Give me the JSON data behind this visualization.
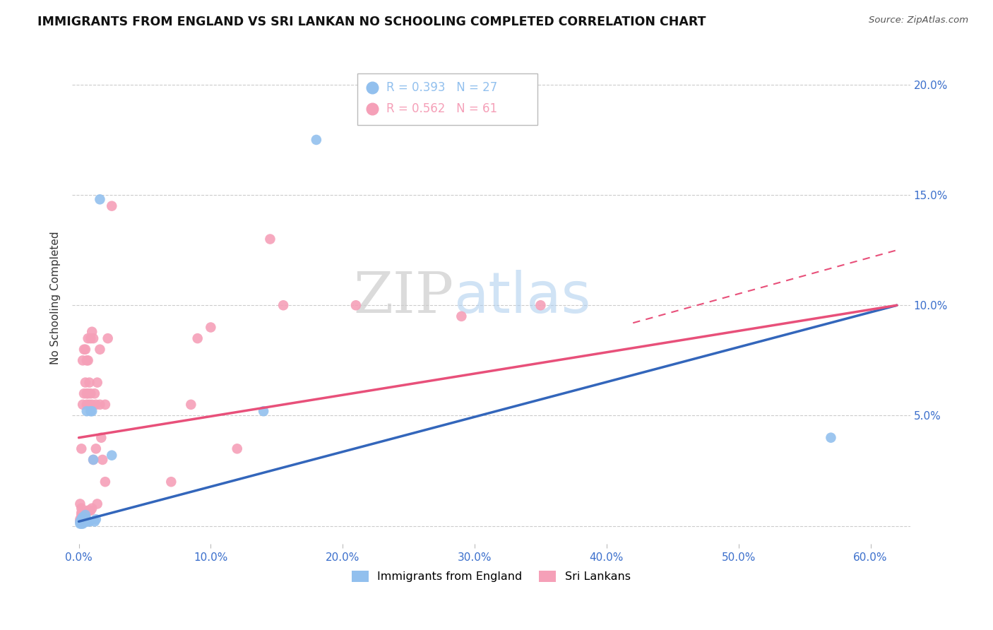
{
  "title": "IMMIGRANTS FROM ENGLAND VS SRI LANKAN NO SCHOOLING COMPLETED CORRELATION CHART",
  "source": "Source: ZipAtlas.com",
  "ylabel": "No Schooling Completed",
  "ytick_values": [
    0.0,
    0.05,
    0.1,
    0.15,
    0.2
  ],
  "ytick_labels": [
    "",
    "5.0%",
    "10.0%",
    "15.0%",
    "20.0%"
  ],
  "xtick_values": [
    0.0,
    0.1,
    0.2,
    0.3,
    0.4,
    0.5,
    0.6
  ],
  "xtick_labels": [
    "0.0%",
    "10.0%",
    "20.0%",
    "30.0%",
    "40.0%",
    "50.0%",
    "60.0%"
  ],
  "xlim": [
    -0.005,
    0.63
  ],
  "ylim": [
    -0.008,
    0.215
  ],
  "blue_color": "#92C0EE",
  "pink_color": "#F5A0B8",
  "blue_line_color": "#3366BB",
  "pink_line_color": "#E8507A",
  "blue_line": {
    "x0": 0.0,
    "y0": 0.002,
    "x1": 0.62,
    "y1": 0.1
  },
  "pink_line": {
    "x0": 0.0,
    "y0": 0.04,
    "x1": 0.62,
    "y1": 0.1
  },
  "pink_dashed_line": {
    "x0": 0.42,
    "y0": 0.092,
    "x1": 0.62,
    "y1": 0.125
  },
  "blue_scatter": [
    [
      0.001,
      0.001
    ],
    [
      0.001,
      0.002
    ],
    [
      0.002,
      0.001
    ],
    [
      0.002,
      0.003
    ],
    [
      0.003,
      0.001
    ],
    [
      0.003,
      0.002
    ],
    [
      0.003,
      0.003
    ],
    [
      0.003,
      0.004
    ],
    [
      0.004,
      0.002
    ],
    [
      0.004,
      0.003
    ],
    [
      0.005,
      0.002
    ],
    [
      0.005,
      0.003
    ],
    [
      0.005,
      0.005
    ],
    [
      0.006,
      0.003
    ],
    [
      0.006,
      0.052
    ],
    [
      0.007,
      0.002
    ],
    [
      0.008,
      0.002
    ],
    [
      0.009,
      0.052
    ],
    [
      0.01,
      0.052
    ],
    [
      0.011,
      0.03
    ],
    [
      0.012,
      0.002
    ],
    [
      0.013,
      0.003
    ],
    [
      0.016,
      0.148
    ],
    [
      0.025,
      0.032
    ],
    [
      0.14,
      0.052
    ],
    [
      0.18,
      0.175
    ],
    [
      0.57,
      0.04
    ]
  ],
  "pink_scatter": [
    [
      0.001,
      0.002
    ],
    [
      0.001,
      0.003
    ],
    [
      0.001,
      0.01
    ],
    [
      0.002,
      0.003
    ],
    [
      0.002,
      0.005
    ],
    [
      0.002,
      0.006
    ],
    [
      0.002,
      0.008
    ],
    [
      0.002,
      0.035
    ],
    [
      0.003,
      0.004
    ],
    [
      0.003,
      0.005
    ],
    [
      0.003,
      0.055
    ],
    [
      0.003,
      0.075
    ],
    [
      0.004,
      0.005
    ],
    [
      0.004,
      0.006
    ],
    [
      0.004,
      0.06
    ],
    [
      0.004,
      0.08
    ],
    [
      0.005,
      0.005
    ],
    [
      0.005,
      0.065
    ],
    [
      0.005,
      0.08
    ],
    [
      0.006,
      0.006
    ],
    [
      0.006,
      0.055
    ],
    [
      0.006,
      0.06
    ],
    [
      0.006,
      0.075
    ],
    [
      0.007,
      0.007
    ],
    [
      0.007,
      0.06
    ],
    [
      0.007,
      0.075
    ],
    [
      0.007,
      0.085
    ],
    [
      0.008,
      0.007
    ],
    [
      0.008,
      0.055
    ],
    [
      0.008,
      0.065
    ],
    [
      0.009,
      0.007
    ],
    [
      0.009,
      0.06
    ],
    [
      0.009,
      0.085
    ],
    [
      0.01,
      0.008
    ],
    [
      0.01,
      0.055
    ],
    [
      0.01,
      0.088
    ],
    [
      0.011,
      0.03
    ],
    [
      0.011,
      0.085
    ],
    [
      0.012,
      0.06
    ],
    [
      0.013,
      0.035
    ],
    [
      0.013,
      0.055
    ],
    [
      0.014,
      0.01
    ],
    [
      0.014,
      0.065
    ],
    [
      0.016,
      0.055
    ],
    [
      0.016,
      0.08
    ],
    [
      0.017,
      0.04
    ],
    [
      0.018,
      0.03
    ],
    [
      0.02,
      0.02
    ],
    [
      0.02,
      0.055
    ],
    [
      0.022,
      0.085
    ],
    [
      0.025,
      0.145
    ],
    [
      0.07,
      0.02
    ],
    [
      0.085,
      0.055
    ],
    [
      0.09,
      0.085
    ],
    [
      0.1,
      0.09
    ],
    [
      0.12,
      0.035
    ],
    [
      0.145,
      0.13
    ],
    [
      0.155,
      0.1
    ],
    [
      0.21,
      0.1
    ],
    [
      0.29,
      0.095
    ],
    [
      0.35,
      0.1
    ]
  ],
  "watermark_zip": "ZIP",
  "watermark_atlas": "atlas",
  "legend_entries": [
    {
      "label": "R = 0.393   N = 27",
      "color": "#92C0EE"
    },
    {
      "label": "R = 0.562   N = 61",
      "color": "#F5A0B8"
    }
  ],
  "bottom_legend": [
    "Immigrants from England",
    "Sri Lankans"
  ]
}
